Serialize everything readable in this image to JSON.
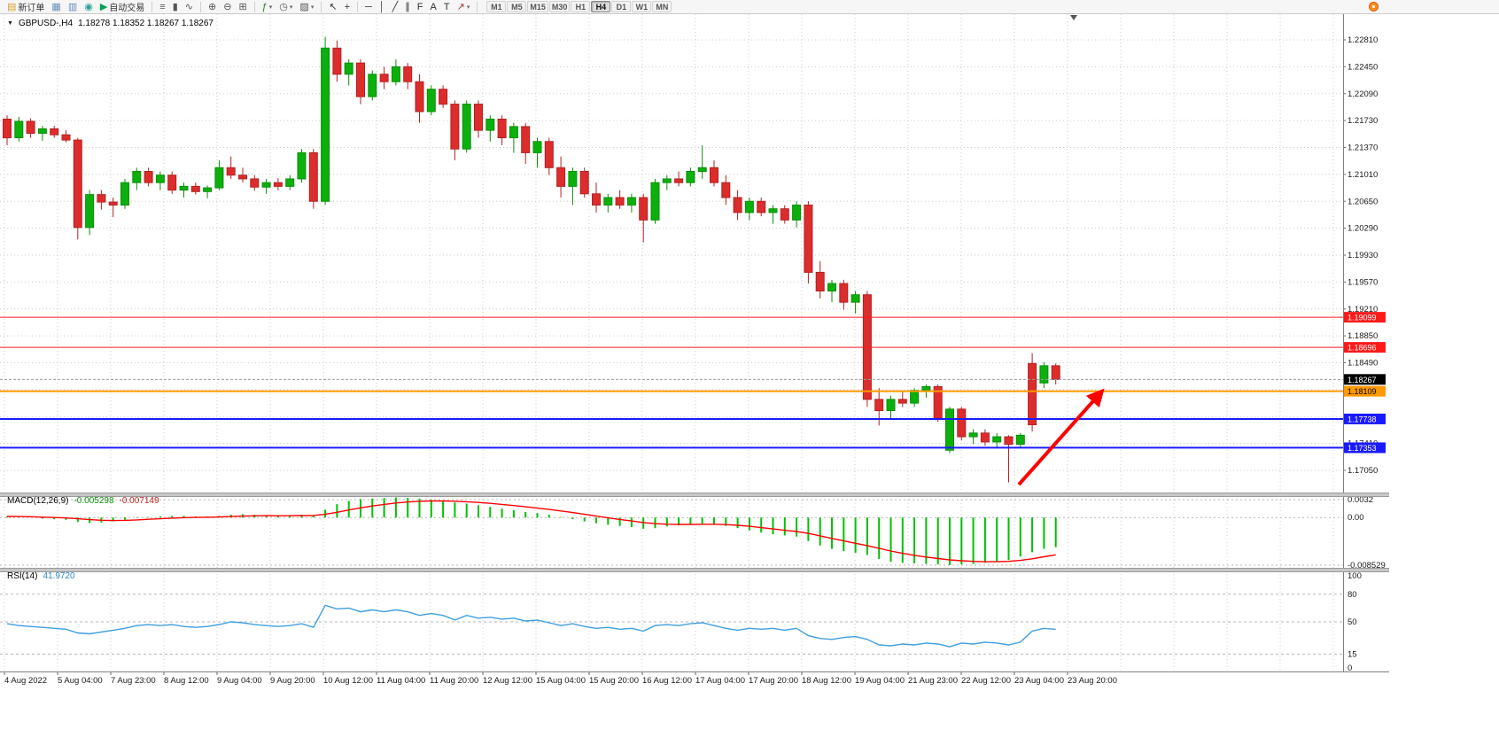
{
  "toolbar": {
    "buttons": [
      {
        "name": "new-order",
        "glyph": "▤",
        "glyph_color": "#d7a12f",
        "label": "新订单"
      },
      {
        "name": "chart-windows",
        "glyph": "▦",
        "glyph_color": "#6b8cba"
      },
      {
        "name": "profiles",
        "glyph": "▥",
        "glyph_color": "#6b8cba"
      },
      {
        "name": "refresh",
        "glyph": "◉",
        "glyph_color": "#2aa198"
      },
      {
        "name": "auto-trading",
        "glyph": "▶",
        "glyph_color": "#00a651",
        "label": "自动交易"
      },
      {
        "sep": true
      },
      {
        "name": "bar-chart",
        "glyph": "≡",
        "glyph_color": "#555555"
      },
      {
        "name": "candlestick-chart",
        "glyph": "▮",
        "glyph_color": "#555555"
      },
      {
        "name": "line-chart",
        "glyph": "∿",
        "glyph_color": "#555555"
      },
      {
        "sep": true
      },
      {
        "name": "zoom-in",
        "glyph": "⊕",
        "glyph_color": "#555555"
      },
      {
        "name": "zoom-out",
        "glyph": "⊖",
        "glyph_color": "#555555"
      },
      {
        "name": "tile-windows",
        "glyph": "⊞",
        "glyph_color": "#555555"
      },
      {
        "sep": true
      },
      {
        "name": "indicators",
        "glyph": "ƒ",
        "glyph_color": "#2e7d32",
        "chevron": true
      },
      {
        "name": "periods",
        "glyph": "◷",
        "glyph_color": "#555555",
        "chevron": true
      },
      {
        "name": "templates",
        "glyph": "▨",
        "glyph_color": "#555555",
        "chevron": true
      },
      {
        "sep": true
      },
      {
        "name": "cursor",
        "glyph": "↖",
        "glyph_color": "#333333"
      },
      {
        "name": "crosshair",
        "glyph": "+",
        "glyph_color": "#333333"
      },
      {
        "sep": true
      },
      {
        "name": "horizontal-line",
        "glyph": "─",
        "glyph_color": "#333333"
      },
      {
        "name": "vertical-line",
        "glyph": "│",
        "glyph_color": "#333333"
      },
      {
        "name": "trendline",
        "glyph": "╱",
        "glyph_color": "#333333"
      },
      {
        "name": "equidistant-channel",
        "glyph": "∥",
        "glyph_color": "#333333"
      },
      {
        "name": "fibonacci",
        "glyph": "F",
        "glyph_color": "#333333"
      },
      {
        "name": "text",
        "glyph": "A",
        "glyph_color": "#333333"
      },
      {
        "name": "text-label",
        "glyph": "T",
        "glyph_color": "#333333"
      },
      {
        "name": "arrows",
        "glyph": "↗",
        "glyph_color": "#b03030",
        "chevron": true
      },
      {
        "sep": true
      }
    ],
    "timeframes": [
      "M1",
      "M5",
      "M15",
      "M30",
      "H1",
      "H4",
      "D1",
      "W1",
      "MN"
    ],
    "active_timeframe": "H4"
  },
  "chart_data": {
    "type": "candlestick",
    "title": "GBPUSD-,H4",
    "ohlc_text": "1.18278 1.18352 1.18267 1.18267",
    "current_ohlc": {
      "open": "1.18278",
      "high": "1.18352",
      "low": "1.18267",
      "close": "1.18267"
    },
    "current_price": {
      "value": 1.18267,
      "label": "1.18267",
      "color": "#000000",
      "text_color": "#ffffff"
    },
    "price_labels": [
      "1.22810",
      "1.22450",
      "1.22090",
      "1.21730",
      "1.21370",
      "1.21010",
      "1.20650",
      "1.20290",
      "1.19930",
      "1.19570",
      "1.19210",
      "1.18850",
      "1.18490",
      "1.18130",
      "1.17770",
      "1.17410",
      "1.17050"
    ],
    "time_labels": [
      "4 Aug 2022",
      "5 Aug 04:00",
      "7 Aug 23:00",
      "8 Aug 12:00",
      "9 Aug 04:00",
      "9 Aug 20:00",
      "10 Aug 12:00",
      "11 Aug 04:00",
      "11 Aug 20:00",
      "12 Aug 12:00",
      "15 Aug 04:00",
      "15 Aug 20:00",
      "16 Aug 12:00",
      "17 Aug 04:00",
      "17 Aug 20:00",
      "18 Aug 12:00",
      "19 Aug 04:00",
      "21 Aug 23:00",
      "22 Aug 12:00",
      "23 Aug 04:00",
      "23 Aug 20:00"
    ],
    "levels": [
      {
        "price": 1.19099,
        "label": "1.19099",
        "color": "#ff1a1a",
        "width": 1,
        "text_color": "#ffffff"
      },
      {
        "price": 1.18696,
        "label": "1.18696",
        "color": "#ff1a1a",
        "width": 1,
        "text_color": "#ffffff"
      },
      {
        "price": 1.18109,
        "label": "1.18109",
        "color": "#ff9900",
        "width": 2,
        "text_color": "#000000"
      },
      {
        "price": 1.17738,
        "label": "1.17738",
        "color": "#1a1aff",
        "width": 2,
        "text_color": "#ffffff"
      },
      {
        "price": 1.17353,
        "label": "1.17353",
        "color": "#1a1aff",
        "width": 2,
        "text_color": "#ffffff"
      }
    ],
    "arrow_annotation": {
      "from": [
        1150,
        547
      ],
      "to": [
        1240,
        446
      ],
      "color": "#ff0000",
      "width": 4
    },
    "candles": [
      [
        1.2175,
        1.218,
        1.214,
        1.215
      ],
      [
        1.215,
        1.2178,
        1.2145,
        1.2172
      ],
      [
        1.2172,
        1.2176,
        1.215,
        1.2156
      ],
      [
        1.2156,
        1.2166,
        1.2146,
        1.2162
      ],
      [
        1.2162,
        1.2166,
        1.215,
        1.2154
      ],
      [
        1.2154,
        1.216,
        1.2144,
        1.2147
      ],
      [
        1.2147,
        1.215,
        1.2014,
        1.203
      ],
      [
        1.203,
        1.208,
        1.202,
        1.2074
      ],
      [
        1.2074,
        1.208,
        1.2054,
        1.2064
      ],
      [
        1.2064,
        1.207,
        1.2044,
        1.206
      ],
      [
        1.206,
        1.2095,
        1.2055,
        1.209
      ],
      [
        1.209,
        1.211,
        1.208,
        1.2105
      ],
      [
        1.2105,
        1.211,
        1.2085,
        1.209
      ],
      [
        1.209,
        1.2105,
        1.208,
        1.21
      ],
      [
        1.21,
        1.2105,
        1.2075,
        1.208
      ],
      [
        1.208,
        1.209,
        1.207,
        1.2085
      ],
      [
        1.2085,
        1.209,
        1.2074,
        1.2078
      ],
      [
        1.2078,
        1.2086,
        1.2069,
        1.2083
      ],
      [
        1.2083,
        1.212,
        1.208,
        1.211
      ],
      [
        1.211,
        1.2125,
        1.2095,
        1.21
      ],
      [
        1.21,
        1.211,
        1.209,
        1.2095
      ],
      [
        1.2095,
        1.21,
        1.2079,
        1.2084
      ],
      [
        1.2084,
        1.2095,
        1.2075,
        1.209
      ],
      [
        1.209,
        1.2096,
        1.208,
        1.2085
      ],
      [
        1.2085,
        1.21,
        1.208,
        1.2095
      ],
      [
        1.2095,
        1.2135,
        1.209,
        1.213
      ],
      [
        1.213,
        1.2135,
        1.2055,
        1.2065
      ],
      [
        1.2065,
        1.2285,
        1.206,
        1.227
      ],
      [
        1.227,
        1.228,
        1.2225,
        1.2235
      ],
      [
        1.2235,
        1.2255,
        1.222,
        1.225
      ],
      [
        1.225,
        1.2255,
        1.2195,
        1.2205
      ],
      [
        1.2205,
        1.224,
        1.22,
        1.2235
      ],
      [
        1.2235,
        1.2245,
        1.2215,
        1.2225
      ],
      [
        1.2225,
        1.2255,
        1.222,
        1.2245
      ],
      [
        1.2245,
        1.225,
        1.2215,
        1.2225
      ],
      [
        1.2225,
        1.2235,
        1.217,
        1.2185
      ],
      [
        1.2185,
        1.222,
        1.218,
        1.2215
      ],
      [
        1.2215,
        1.222,
        1.219,
        1.2195
      ],
      [
        1.2195,
        1.22,
        1.212,
        1.2135
      ],
      [
        1.2135,
        1.22,
        1.213,
        1.2195
      ],
      [
        1.2195,
        1.22,
        1.215,
        1.216
      ],
      [
        1.216,
        1.218,
        1.2145,
        1.2175
      ],
      [
        1.2175,
        1.218,
        1.214,
        1.215
      ],
      [
        1.215,
        1.217,
        1.213,
        1.2165
      ],
      [
        1.2165,
        1.217,
        1.2115,
        1.213
      ],
      [
        1.213,
        1.215,
        1.211,
        1.2145
      ],
      [
        1.2145,
        1.215,
        1.21,
        1.211
      ],
      [
        1.211,
        1.2125,
        1.207,
        1.2085
      ],
      [
        1.2085,
        1.211,
        1.206,
        1.2105
      ],
      [
        1.2105,
        1.211,
        1.207,
        1.2075
      ],
      [
        1.2075,
        1.209,
        1.205,
        1.206
      ],
      [
        1.206,
        1.2075,
        1.205,
        1.207
      ],
      [
        1.207,
        1.208,
        1.2055,
        1.206
      ],
      [
        1.206,
        1.2075,
        1.205,
        1.207
      ],
      [
        1.207,
        1.2075,
        1.201,
        1.204
      ],
      [
        1.204,
        1.2095,
        1.2035,
        1.209
      ],
      [
        1.209,
        1.21,
        1.208,
        1.2095
      ],
      [
        1.2095,
        1.2105,
        1.2085,
        1.209
      ],
      [
        1.209,
        1.211,
        1.2085,
        1.2105
      ],
      [
        1.2105,
        1.214,
        1.2095,
        1.211
      ],
      [
        1.211,
        1.212,
        1.2085,
        1.209
      ],
      [
        1.209,
        1.21,
        1.206,
        1.207
      ],
      [
        1.207,
        1.208,
        1.204,
        1.205
      ],
      [
        1.205,
        1.207,
        1.204,
        1.2065
      ],
      [
        1.2065,
        1.207,
        1.2045,
        1.205
      ],
      [
        1.205,
        1.206,
        1.2035,
        1.2055
      ],
      [
        1.2055,
        1.206,
        1.2035,
        1.204
      ],
      [
        1.204,
        1.2065,
        1.203,
        1.206
      ],
      [
        1.206,
        1.2065,
        1.1955,
        1.197
      ],
      [
        1.197,
        1.1985,
        1.1935,
        1.1945
      ],
      [
        1.1945,
        1.196,
        1.193,
        1.1955
      ],
      [
        1.1955,
        1.196,
        1.192,
        1.193
      ],
      [
        1.193,
        1.1945,
        1.1915,
        1.194
      ],
      [
        1.194,
        1.1945,
        1.179,
        1.18
      ],
      [
        1.18,
        1.1815,
        1.1765,
        1.1785
      ],
      [
        1.1785,
        1.1805,
        1.1775,
        1.18
      ],
      [
        1.18,
        1.181,
        1.179,
        1.1795
      ],
      [
        1.1795,
        1.1815,
        1.179,
        1.1812
      ],
      [
        1.1812,
        1.182,
        1.1802,
        1.1817
      ],
      [
        1.1817,
        1.182,
        1.177,
        1.1775
      ],
      [
        1.1732,
        1.179,
        1.1728,
        1.1787
      ],
      [
        1.1787,
        1.179,
        1.1745,
        1.175
      ],
      [
        1.175,
        1.176,
        1.174,
        1.1755
      ],
      [
        1.1755,
        1.176,
        1.1738,
        1.1743
      ],
      [
        1.1743,
        1.1755,
        1.1735,
        1.175
      ],
      [
        1.175,
        1.1752,
        1.1689,
        1.174
      ],
      [
        1.174,
        1.1755,
        1.1735,
        1.1752
      ],
      [
        1.1848,
        1.1862,
        1.1757,
        1.1766
      ],
      [
        1.1822,
        1.185,
        1.1815,
        1.1845
      ],
      [
        1.1845,
        1.1848,
        1.182,
        1.18267
      ]
    ],
    "indicators": {
      "macd": {
        "label": "MACD(12,26,9)",
        "value": "-0.005298",
        "signal_value": "-0.007149",
        "axis_labels": [
          "0.0032",
          "0.00",
          "-0.008529"
        ],
        "axis_values": [
          0.0032,
          0,
          -0.008529
        ],
        "histogram_1e4": [
          2,
          1,
          0,
          -2,
          -3,
          -4,
          -8,
          -10,
          -9,
          -7,
          -4,
          -1,
          1,
          2,
          3,
          3,
          2,
          2,
          3,
          5,
          6,
          5,
          4,
          3,
          3,
          5,
          4,
          14,
          24,
          30,
          33,
          34,
          35,
          36,
          35,
          34,
          32,
          30,
          27,
          25,
          22,
          19,
          16,
          13,
          10,
          8,
          5,
          1,
          -3,
          -7,
          -10,
          -13,
          -15,
          -17,
          -20,
          -19,
          -16,
          -14,
          -12,
          -11,
          -12,
          -15,
          -19,
          -23,
          -27,
          -30,
          -32,
          -34,
          -42,
          -50,
          -56,
          -60,
          -63,
          -67,
          -74,
          -79,
          -81,
          -82,
          -83,
          -84,
          -85,
          -84,
          -83,
          -81,
          -79,
          -76,
          -70,
          -62,
          -56,
          -53
        ]
      },
      "rsi": {
        "label": "RSI(14)",
        "value": "41.9720",
        "axis_labels": [
          "100",
          "80",
          "50",
          "15",
          "0"
        ],
        "axis_values": [
          100,
          80,
          50,
          15,
          0
        ],
        "dashed_levels": [
          80,
          50,
          15
        ],
        "values": [
          48,
          46,
          45,
          44,
          43,
          42,
          38,
          37,
          39,
          41,
          43,
          46,
          47,
          46,
          47,
          45,
          44,
          45,
          47,
          50,
          49,
          47,
          46,
          45,
          46,
          48,
          44,
          68,
          64,
          65,
          61,
          63,
          61,
          63,
          61,
          57,
          59,
          57,
          52,
          57,
          54,
          55,
          53,
          54,
          51,
          52,
          49,
          46,
          48,
          45,
          43,
          44,
          42,
          43,
          40,
          46,
          47,
          46,
          48,
          49,
          46,
          43,
          41,
          43,
          42,
          43,
          41,
          43,
          35,
          32,
          31,
          33,
          34,
          31,
          25,
          24,
          26,
          25,
          27,
          26,
          23,
          27,
          26,
          28,
          27,
          25,
          28,
          40,
          43,
          41.97
        ]
      }
    },
    "colors": {
      "candle_up": "#0cb00c",
      "candle_up_stroke": "#0a8f0a",
      "candle_down": "#dd2c2c",
      "candle_down_stroke": "#b22222",
      "macd_histogram": "#00c100",
      "macd_signal": "#ff0000",
      "rsi_line": "#3f9fdf",
      "grid": "#cccccc",
      "axis_text": "#1a1a1a"
    }
  }
}
